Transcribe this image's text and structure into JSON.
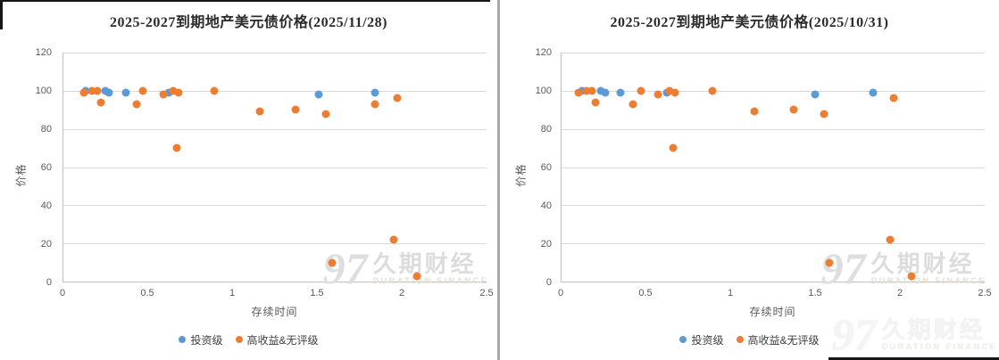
{
  "watermark": {
    "logo": "97",
    "name": "久期财经",
    "subtitle": "DURATION FINANCE"
  },
  "legend": [
    {
      "label": "投资级",
      "color": "#5B9BD5"
    },
    {
      "label": "高收益&无评级",
      "color": "#ED7D31"
    }
  ],
  "chart_data": [
    {
      "type": "scatter",
      "title": "2025-2027到期地产美元债价格(2025/11/28)",
      "xlabel": "存续时间",
      "ylabel": "价格",
      "xlim": [
        0,
        2.5
      ],
      "ylim": [
        0,
        120
      ],
      "xtick_values": [
        0,
        0.5,
        1,
        1.5,
        2,
        2.5
      ],
      "xtick_labels": [
        "0",
        "0.5",
        "1",
        "1.5",
        "2",
        "2.5"
      ],
      "ytick_values": [
        0,
        20,
        40,
        60,
        80,
        100,
        120
      ],
      "ytick_labels": [
        "0",
        "20",
        "40",
        "60",
        "80",
        "100",
        "120"
      ],
      "grid": "horizontal",
      "legend_position": "bottom",
      "series": [
        {
          "name": "投资级",
          "color": "#5B9BD5",
          "points": [
            [
              0.13,
              100
            ],
            [
              0.25,
              100
            ],
            [
              0.27,
              99
            ],
            [
              0.37,
              99
            ],
            [
              0.62,
              99
            ],
            [
              1.51,
              98
            ],
            [
              1.84,
              99
            ]
          ]
        },
        {
          "name": "高收益&无评级",
          "color": "#ED7D31",
          "points": [
            [
              0.12,
              99
            ],
            [
              0.17,
              100
            ],
            [
              0.2,
              100
            ],
            [
              0.22,
              94
            ],
            [
              0.43,
              93
            ],
            [
              0.47,
              100
            ],
            [
              0.59,
              98
            ],
            [
              0.65,
              100
            ],
            [
              0.68,
              99
            ],
            [
              0.67,
              70
            ],
            [
              0.89,
              100
            ],
            [
              1.16,
              89
            ],
            [
              1.37,
              90
            ],
            [
              1.55,
              88
            ],
            [
              1.59,
              10
            ],
            [
              1.84,
              93
            ],
            [
              1.95,
              22
            ],
            [
              1.97,
              96
            ],
            [
              2.09,
              3
            ]
          ]
        }
      ]
    },
    {
      "type": "scatter",
      "title": "2025-2027到期地产美元债价格(2025/10/31)",
      "xlabel": "存续时间",
      "ylabel": "价格",
      "xlim": [
        0,
        2.5
      ],
      "ylim": [
        0,
        120
      ],
      "xtick_values": [
        0,
        0.5,
        1,
        1.5,
        2,
        2.5
      ],
      "xtick_labels": [
        "0",
        "0.5",
        "1",
        "1.5",
        "2",
        "2.5"
      ],
      "ytick_values": [
        0,
        20,
        40,
        60,
        80,
        100,
        120
      ],
      "ytick_labels": [
        "0",
        "20",
        "40",
        "60",
        "80",
        "100",
        "120"
      ],
      "grid": "horizontal",
      "legend_position": "bottom",
      "series": [
        {
          "name": "投资级",
          "color": "#5B9BD5",
          "points": [
            [
              0.12,
              100
            ],
            [
              0.23,
              100
            ],
            [
              0.26,
              99
            ],
            [
              0.35,
              99
            ],
            [
              0.62,
              99
            ],
            [
              1.5,
              98
            ],
            [
              1.84,
              99
            ]
          ]
        },
        {
          "name": "高收益&无评级",
          "color": "#ED7D31",
          "points": [
            [
              0.1,
              99
            ],
            [
              0.15,
              100
            ],
            [
              0.18,
              100
            ],
            [
              0.2,
              94
            ],
            [
              0.42,
              93
            ],
            [
              0.47,
              100
            ],
            [
              0.57,
              98
            ],
            [
              0.64,
              100
            ],
            [
              0.67,
              99
            ],
            [
              0.66,
              70
            ],
            [
              0.89,
              100
            ],
            [
              1.14,
              89
            ],
            [
              1.37,
              90
            ],
            [
              1.55,
              88
            ],
            [
              1.58,
              10
            ],
            [
              1.94,
              22
            ],
            [
              1.96,
              96
            ],
            [
              2.07,
              3
            ]
          ]
        }
      ]
    }
  ]
}
